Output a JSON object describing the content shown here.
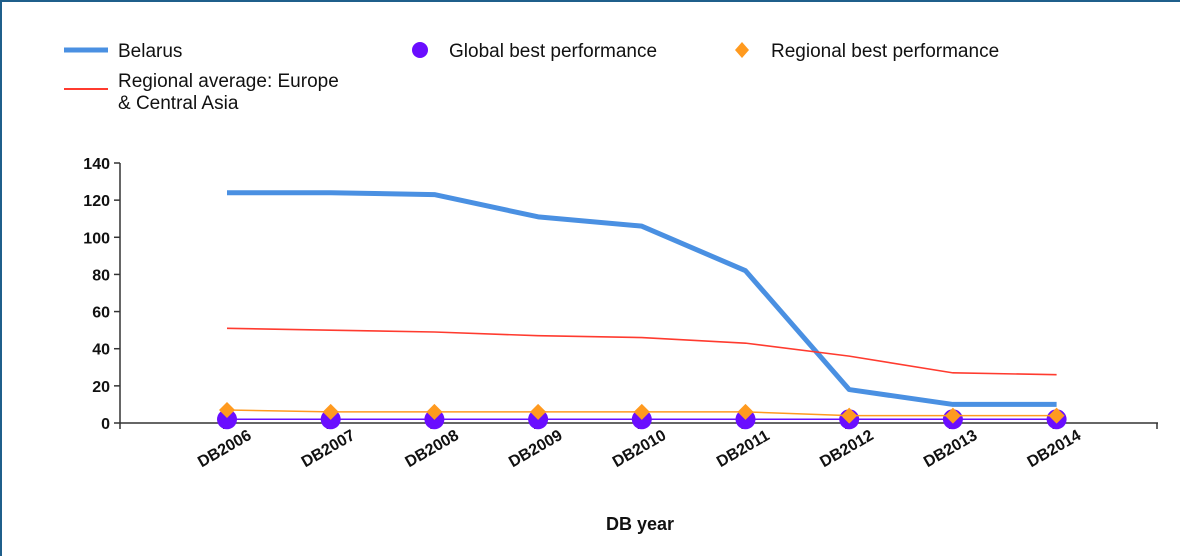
{
  "chart_data": {
    "type": "line",
    "title": "",
    "xlabel": "DB year",
    "ylabel": "",
    "ylim": [
      0,
      140
    ],
    "yticks": [
      0,
      20,
      40,
      60,
      80,
      100,
      120,
      140
    ],
    "categories": [
      "DB2006",
      "DB2007",
      "DB2008",
      "DB2009",
      "DB2010",
      "DB2011",
      "DB2012",
      "DB2013",
      "DB2014"
    ],
    "series": [
      {
        "name": "Belarus",
        "values": [
          124,
          124,
          123,
          111,
          106,
          82,
          18,
          10,
          10
        ],
        "color": "#4a90e2",
        "style": "line-thick"
      },
      {
        "name": "Regional average: Europe & Central Asia",
        "values": [
          51,
          50,
          49,
          47,
          46,
          43,
          36,
          27,
          26
        ],
        "color": "#ff3b2f",
        "style": "line-thin"
      },
      {
        "name": "Global best performance",
        "values": [
          2,
          2,
          2,
          2,
          2,
          2,
          2,
          2,
          2
        ],
        "color": "#6a0dff",
        "style": "circle-markers"
      },
      {
        "name": "Regional best performance",
        "values": [
          7,
          6,
          6,
          6,
          6,
          6,
          4,
          4,
          4
        ],
        "color": "#ff9a1f",
        "style": "diamond-markers"
      }
    ],
    "legend": {
      "placement": "top",
      "items": [
        {
          "label": "Belarus",
          "series": 0
        },
        {
          "label": "Global best performance",
          "series": 2
        },
        {
          "label": "Regional best performance",
          "series": 3
        },
        {
          "label_lines": [
            "Regional average: Europe",
            "& Central Asia"
          ],
          "series": 1
        }
      ]
    },
    "grid": false
  }
}
